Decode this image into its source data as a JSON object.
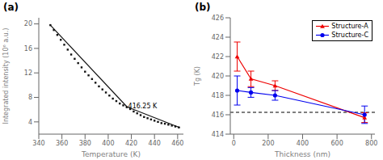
{
  "chart_data": [
    {
      "type": "scatter",
      "title": "(a)",
      "xlabel": "Temperature (K)",
      "ylabel": "Integrated intensity (10⁶ a.u.)",
      "xlim": [
        340,
        465
      ],
      "ylim": [
        2,
        21
      ],
      "xticks": [
        340,
        360,
        380,
        400,
        420,
        440,
        460
      ],
      "yticks": [
        4,
        8,
        12,
        16,
        20
      ],
      "annotations": [
        {
          "text": "416.25 K",
          "x": 416.5,
          "y": 6.2
        }
      ],
      "series": [
        {
          "type": "scatter",
          "marker": "square",
          "color": "#111111",
          "x": [
            350,
            353,
            356,
            359,
            362,
            365,
            368,
            371,
            374,
            377,
            380,
            383,
            386,
            389,
            392,
            395,
            398,
            401,
            404,
            407,
            410,
            413,
            416,
            419,
            422,
            425,
            428,
            431,
            434,
            437,
            440,
            443,
            446,
            449,
            452,
            455,
            458,
            461
          ],
          "values": [
            19.8,
            19.0,
            18.2,
            17.4,
            16.6,
            15.8,
            15.0,
            14.3,
            13.6,
            12.9,
            12.2,
            11.6,
            11.0,
            10.4,
            9.8,
            9.3,
            8.8,
            8.3,
            7.8,
            7.4,
            7.0,
            6.7,
            6.4,
            6.1,
            5.7,
            5.4,
            5.1,
            4.8,
            4.6,
            4.4,
            4.2,
            4.0,
            3.8,
            3.7,
            3.55,
            3.4,
            3.25,
            3.1
          ]
        },
        {
          "type": "line",
          "color": "#111111",
          "x": [
            350,
            416.25
          ],
          "values": [
            19.8,
            6.45
          ]
        },
        {
          "type": "line",
          "color": "#111111",
          "x": [
            416.25,
            462
          ],
          "values": [
            6.45,
            3.05
          ]
        }
      ]
    },
    {
      "type": "line",
      "title": "(b)",
      "xlabel": "Thickness (nm)",
      "ylabel": "Tg (K)",
      "xlim": [
        -20,
        820
      ],
      "ylim": [
        414,
        426
      ],
      "xticks": [
        0,
        200,
        400,
        600,
        800
      ],
      "yticks": [
        414,
        416,
        418,
        420,
        422,
        424,
        426
      ],
      "legend": "upper right",
      "hline": 416.25,
      "series": [
        {
          "type": "line",
          "name": "Structure-A",
          "color": "#ee0000",
          "marker": "triangle",
          "x": [
            20,
            100,
            240,
            760
          ],
          "values": [
            422.0,
            419.7,
            419.0,
            415.7
          ],
          "errors": [
            1.5,
            0.8,
            0.5,
            0.5
          ]
        },
        {
          "type": "line",
          "name": "Structure-C",
          "color": "#0000ee",
          "marker": "circle",
          "x": [
            20,
            100,
            240,
            760
          ],
          "values": [
            418.5,
            418.3,
            418.0,
            416.0
          ],
          "errors": [
            1.5,
            0.5,
            0.5,
            0.9
          ]
        }
      ]
    }
  ]
}
